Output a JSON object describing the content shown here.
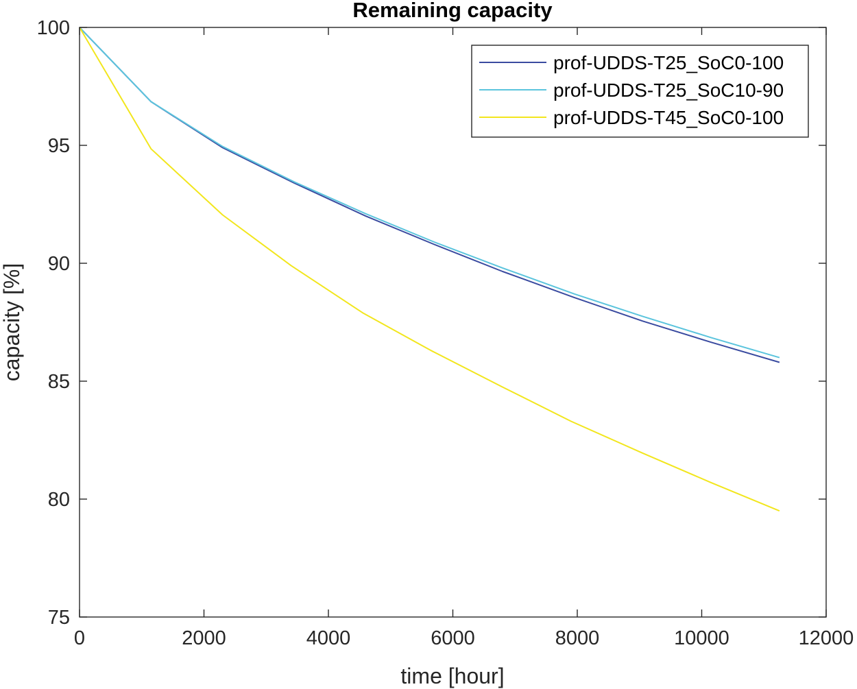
{
  "chart_data": {
    "type": "line",
    "title": "Remaining capacity",
    "xlabel": "time [hour]",
    "ylabel": "capacity [%]",
    "xlim": [
      0,
      12000
    ],
    "ylim": [
      75,
      100
    ],
    "xticks": [
      0,
      2000,
      4000,
      6000,
      8000,
      10000,
      12000
    ],
    "xtick_labels": [
      "0",
      "2000",
      "4000",
      "6000",
      "8000",
      "10000",
      "12000"
    ],
    "yticks": [
      75,
      80,
      85,
      90,
      95,
      100
    ],
    "ytick_labels": [
      "75",
      "80",
      "85",
      "90",
      "95",
      "100"
    ],
    "grid": false,
    "legend_position": "top-right",
    "series": [
      {
        "name": "prof-UDDS-T25_SoC0-100",
        "color": "#3a4ba0",
        "x": [
          0,
          1150,
          2300,
          3450,
          4600,
          5700,
          6800,
          7950,
          9050,
          10150,
          11250
        ],
        "y": [
          100,
          96.85,
          94.9,
          93.4,
          92.0,
          90.8,
          89.65,
          88.55,
          87.55,
          86.65,
          85.8
        ]
      },
      {
        "name": "prof-UDDS-T25_SoC10-90",
        "color": "#5bc4dd",
        "x": [
          0,
          1150,
          2300,
          3450,
          4600,
          5700,
          6800,
          7950,
          9050,
          10150,
          11250
        ],
        "y": [
          100,
          96.85,
          94.95,
          93.45,
          92.1,
          90.9,
          89.8,
          88.7,
          87.75,
          86.85,
          86.0
        ]
      },
      {
        "name": "prof-UDDS-T45_SoC0-100",
        "color": "#f2e61d",
        "x": [
          0,
          1150,
          2300,
          3400,
          4550,
          5650,
          6800,
          7900,
          9050,
          10150,
          11250
        ],
        "y": [
          100,
          94.85,
          92.05,
          89.9,
          87.9,
          86.3,
          84.75,
          83.3,
          81.95,
          80.7,
          79.5
        ]
      }
    ]
  }
}
